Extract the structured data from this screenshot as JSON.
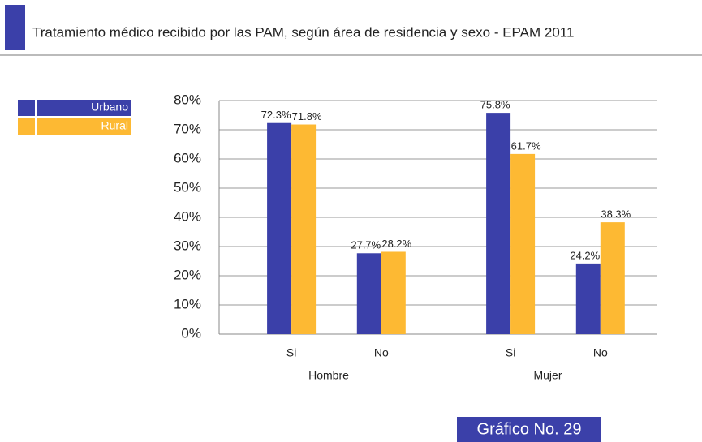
{
  "chart_data": {
    "type": "bar",
    "title": "Tratamiento médico recibido por las PAM, según área de residencia y sexo - EPAM 2011",
    "caption": "Gráfico No. 29",
    "categories": [
      "Si",
      "No",
      "Si",
      "No"
    ],
    "groups": [
      "Hombre",
      "Mujer"
    ],
    "series": [
      {
        "name": "Urbano",
        "color": "#3b40a9",
        "values": [
          72.3,
          27.7,
          75.8,
          24.2
        ],
        "value_labels": [
          "72.3%",
          "27.7%",
          "75.8%",
          "24.2%"
        ]
      },
      {
        "name": "Rural",
        "color": "#fdb933",
        "values": [
          71.8,
          28.2,
          61.7,
          38.3
        ],
        "value_labels": [
          "71.8%",
          "28.2%",
          "61.7%",
          "38.3%"
        ]
      }
    ],
    "ylim": [
      0,
      80
    ],
    "yticks": [
      {
        "value": 0,
        "label": "0%"
      },
      {
        "value": 10,
        "label": "10%"
      },
      {
        "value": 20,
        "label": "20%"
      },
      {
        "value": 30,
        "label": "30%"
      },
      {
        "value": 40,
        "label": "40%"
      },
      {
        "value": 50,
        "label": "50%"
      },
      {
        "value": 60,
        "label": "60%"
      },
      {
        "value": 70,
        "label": "70%"
      },
      {
        "value": 80,
        "label": "80%"
      }
    ],
    "grid": true,
    "legend": "left"
  }
}
